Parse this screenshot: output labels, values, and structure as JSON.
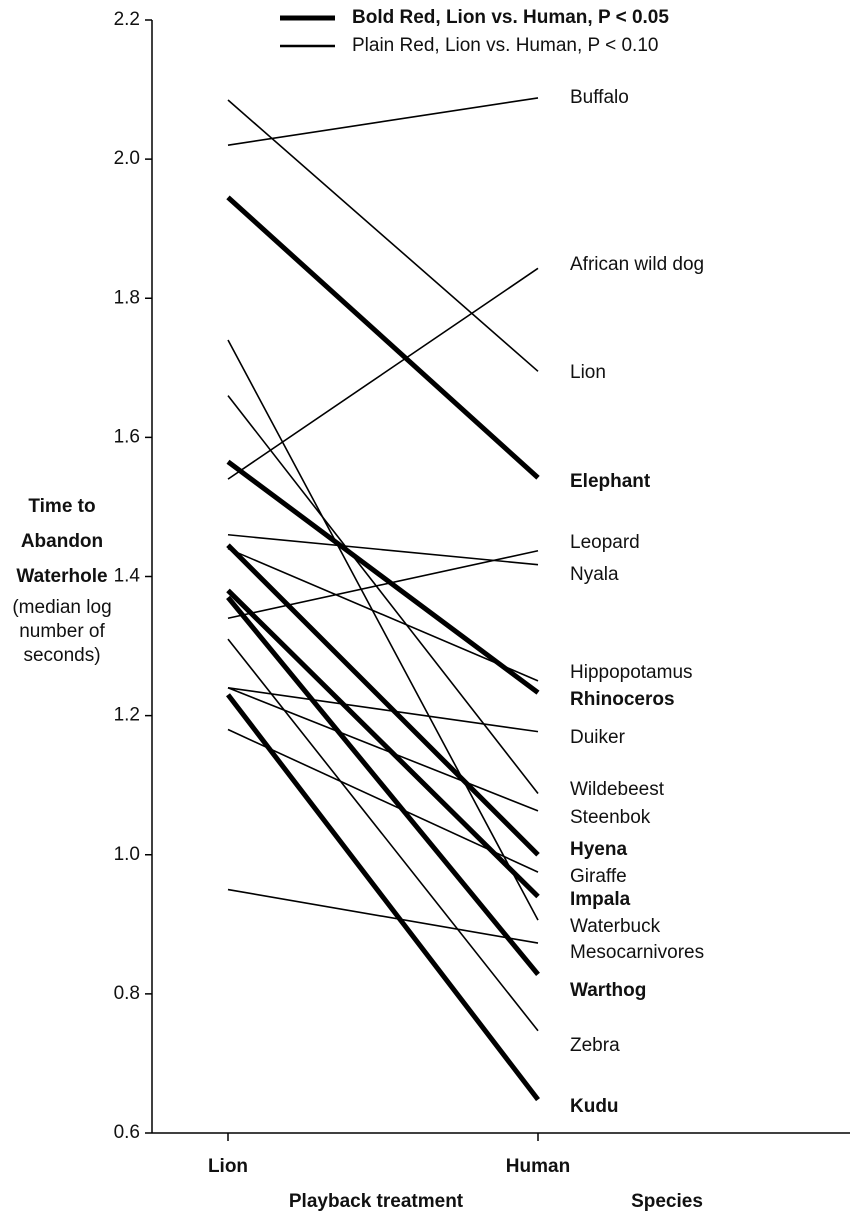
{
  "chart_data": {
    "type": "slope",
    "categories": [
      "Lion",
      "Human"
    ],
    "x_label": "Playback treatment",
    "species_label": "Species",
    "y_label": [
      "Time to",
      "Abandon",
      "Waterhole"
    ],
    "y_label_note": [
      "(median log",
      "number of",
      "seconds)"
    ],
    "ylim": [
      0.6,
      2.2
    ],
    "yticks": [
      0.6,
      0.8,
      {
        "value": 1.0,
        "label": "1.0"
      },
      1.2,
      1.4,
      1.6,
      1.8,
      {
        "value": 2.0,
        "label": "2.0"
      },
      2.2
    ],
    "grid": false,
    "legend": [
      {
        "label": "Bold Red, Lion vs. Human, P < 0.05",
        "bold": true,
        "color": "#e8141c"
      },
      {
        "label": "Plain Red, Lion vs. Human, P < 0.10",
        "bold": false,
        "color": "#e8141c"
      }
    ],
    "series": [
      {
        "name": "Buffalo",
        "values": [
          2.02,
          2.088
        ],
        "bold": false,
        "color": "#111111"
      },
      {
        "name": "African wild dog",
        "values": [
          1.54,
          1.843
        ],
        "bold": false,
        "color": "#111111"
      },
      {
        "name": "Lion",
        "values": [
          2.085,
          1.695
        ],
        "bold": false,
        "color": "#111111"
      },
      {
        "name": "Elephant",
        "values": [
          1.945,
          1.542
        ],
        "bold": true,
        "color": "#e8141c"
      },
      {
        "name": "Leopard",
        "values": [
          1.34,
          1.437
        ],
        "bold": false,
        "color": "#111111"
      },
      {
        "name": "Nyala",
        "values": [
          1.46,
          1.417
        ],
        "bold": false,
        "color": "#111111"
      },
      {
        "name": "Hippopotamus",
        "values": [
          1.44,
          1.25
        ],
        "bold": false,
        "color": "#111111"
      },
      {
        "name": "Rhinoceros",
        "values": [
          1.565,
          1.233
        ],
        "bold": true,
        "color": "#e8141c"
      },
      {
        "name": "Duiker",
        "values": [
          1.24,
          1.177
        ],
        "bold": false,
        "color": "#111111"
      },
      {
        "name": "Wildebeest",
        "values": [
          1.66,
          1.088
        ],
        "bold": false,
        "color": "#111111"
      },
      {
        "name": "Steenbok",
        "values": [
          1.24,
          1.063
        ],
        "bold": false,
        "color": "#111111"
      },
      {
        "name": "Hyena",
        "values": [
          1.445,
          1.0
        ],
        "bold": true,
        "color": "#e8141c"
      },
      {
        "name": "Giraffe",
        "values": [
          1.18,
          0.975
        ],
        "bold": false,
        "color": "#111111"
      },
      {
        "name": "Impala",
        "values": [
          1.38,
          0.94
        ],
        "bold": true,
        "color": "#e8141c"
      },
      {
        "name": "Waterbuck",
        "values": [
          1.74,
          0.906
        ],
        "bold": false,
        "color": "#e8141c"
      },
      {
        "name": "Mesocarnivores",
        "values": [
          0.95,
          0.873
        ],
        "bold": false,
        "color": "#111111"
      },
      {
        "name": "Warthog",
        "values": [
          1.37,
          0.828
        ],
        "bold": true,
        "color": "#e8141c"
      },
      {
        "name": "Zebra",
        "values": [
          1.31,
          0.747
        ],
        "bold": false,
        "color": "#e8141c"
      },
      {
        "name": "Kudu",
        "values": [
          1.23,
          0.648
        ],
        "bold": true,
        "color": "#e8141c"
      }
    ]
  }
}
